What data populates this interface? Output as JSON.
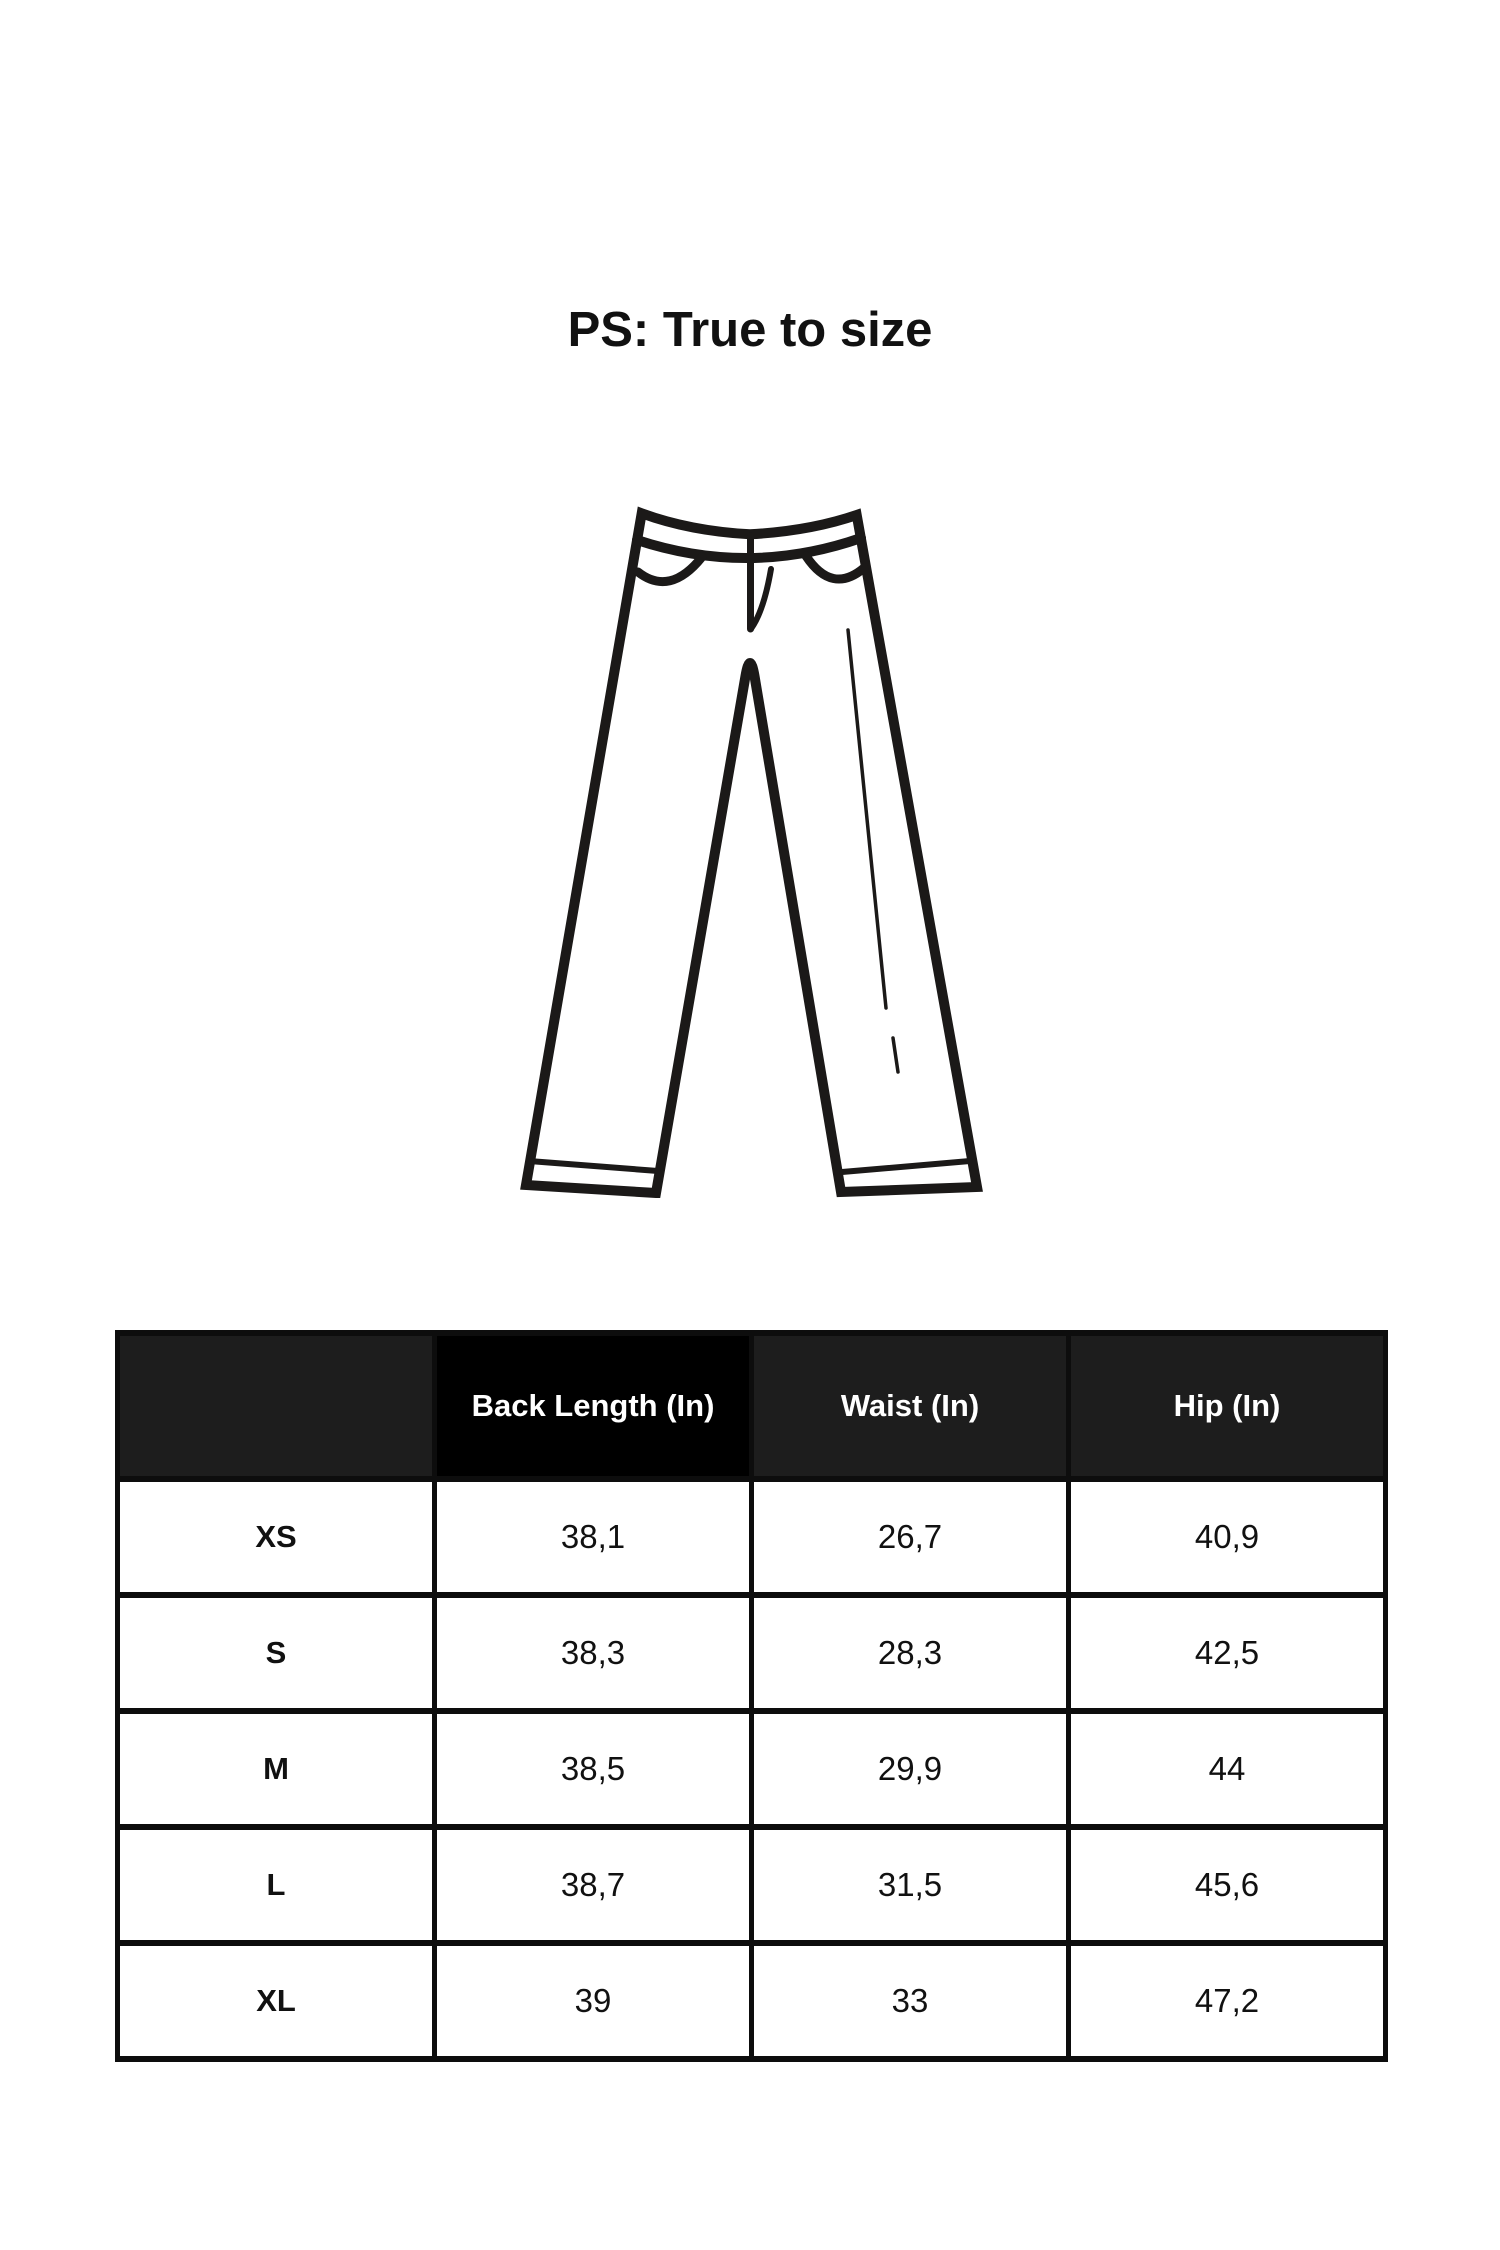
{
  "title": "PS: True to size",
  "illustration": {
    "icon": "pants-line-drawing",
    "line_color": "#1b1918"
  },
  "table": {
    "columns": [
      "",
      "Back Length (In)",
      "Waist (In)",
      "Hip (In)"
    ],
    "highlighted_column": "Back Length (In)",
    "rows": [
      [
        "XS",
        "38,1",
        "26,7",
        "40,9"
      ],
      [
        "S",
        "38,3",
        "28,3",
        "42,5"
      ],
      [
        "M",
        "38,5",
        "29,9",
        "44"
      ],
      [
        "L",
        "38,7",
        "31,5",
        "45,6"
      ],
      [
        "XL",
        "39",
        "33",
        "47,2"
      ]
    ]
  },
  "colors": {
    "page_background": "#ffffff",
    "text": "#111111",
    "table_border": "#0d0d0d",
    "header_background": "#1d1d1d",
    "header_highlight_background": "#000000",
    "header_text": "#ffffff",
    "illustration_line": "#1b1918"
  }
}
